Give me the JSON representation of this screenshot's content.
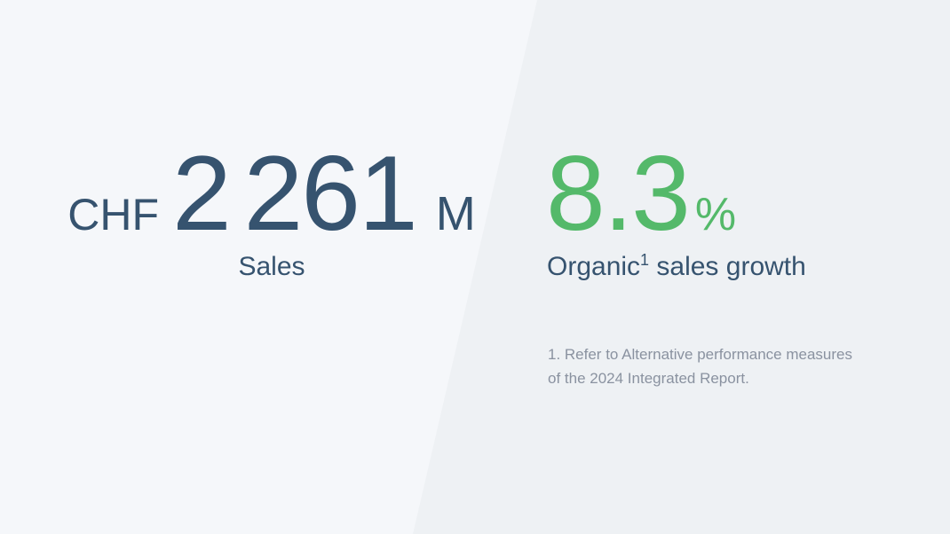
{
  "left_stat": {
    "currency": "CHF",
    "value": "2 261",
    "unit": "M",
    "label": "Sales"
  },
  "right_stat": {
    "value": "8.3",
    "unit": "%",
    "label_prefix": "Organic",
    "footnote_marker": "1",
    "label_suffix": " sales growth",
    "footnote_lines": [
      "1. Refer to Alternative performance measures",
      "of the 2024 Integrated Report."
    ]
  },
  "colors": {
    "accent_green": "#54b96a",
    "dark_slate": "#36536f",
    "footnote_gray": "#8a92a0",
    "left_panel_bg": "#f5f7fa",
    "right_panel_bg": "#eef1f4"
  }
}
